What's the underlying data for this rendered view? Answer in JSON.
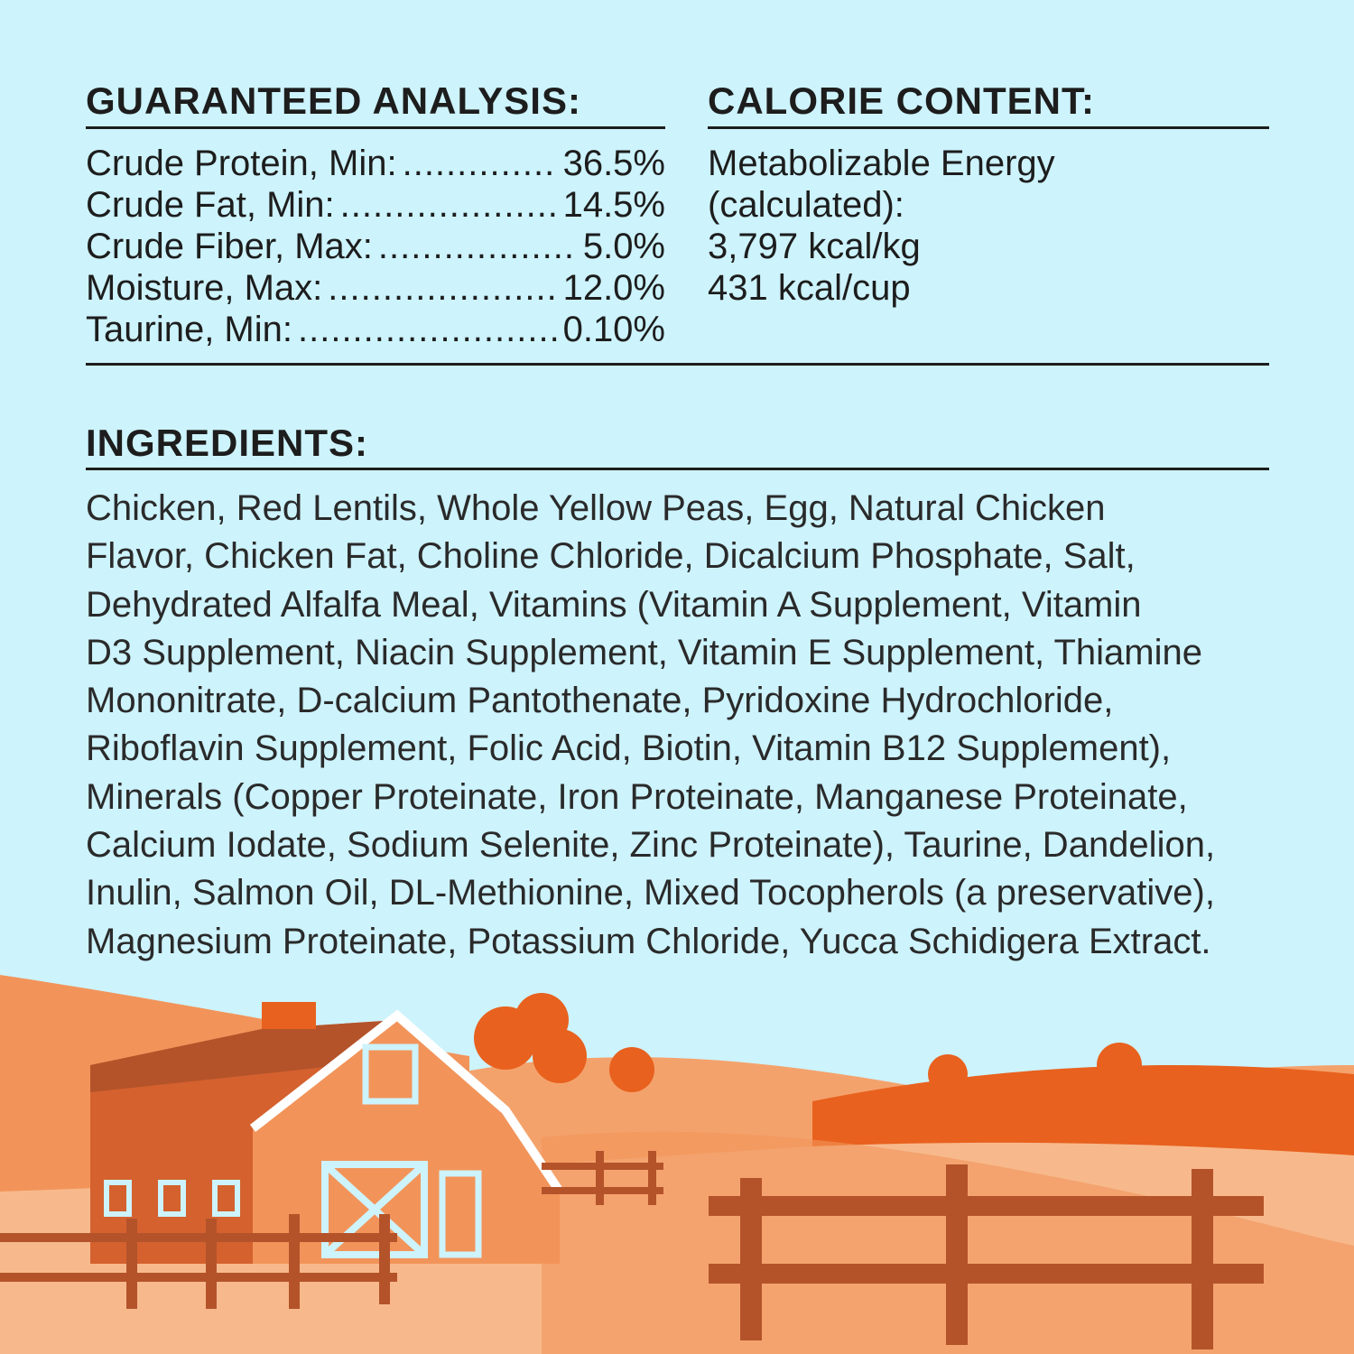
{
  "guaranteed_analysis": {
    "heading": "GUARANTEED ANALYSIS:",
    "rows": [
      {
        "label": "Crude Protein, Min:",
        "value": "36.5%"
      },
      {
        "label": "Crude Fat, Min:",
        "value": "14.5%"
      },
      {
        "label": "Crude Fiber, Max:",
        "value": "5.0%"
      },
      {
        "label": "Moisture, Max:",
        "value": "12.0%"
      },
      {
        "label": "Taurine, Min:",
        "value": "0.10%"
      }
    ]
  },
  "calorie_content": {
    "heading": "CALORIE CONTENT:",
    "lines": [
      "Metabolizable Energy",
      "(calculated):",
      "3,797 kcal/kg",
      "431 kcal/cup"
    ]
  },
  "ingredients": {
    "heading": "INGREDIENTS:",
    "lines": [
      "Chicken, Red Lentils, Whole Yellow Peas, Egg, Natural Chicken",
      "Flavor, Chicken Fat, Choline Chloride, Dicalcium Phosphate, Salt,",
      "Dehydrated Alfalfa Meal, Vitamins (Vitamin A Supplement, Vitamin",
      "D3 Supplement, Niacin Supplement, Vitamin E Supplement, Thiamine",
      "Mononitrate, D-calcium Pantothenate, Pyridoxine Hydrochloride,",
      "Riboflavin Supplement, Folic Acid, Biotin, Vitamin B12 Supplement),",
      "Minerals (Copper Proteinate, Iron Proteinate, Manganese Proteinate,",
      "Calcium Iodate, Sodium Selenite, Zinc Proteinate), Taurine, Dandelion,",
      "Inulin, Salmon Oil, DL-Methionine, Mixed Tocopherols (a preservative),",
      "Magnesium Proteinate, Potassium Chloride, Yucca Schidigera Extract."
    ]
  },
  "colors": {
    "background": "#cdf3fc",
    "text": "#1d1d1d",
    "orange_dark": "#e8611e",
    "orange_mid": "#f2945a",
    "orange_light": "#f7b98c",
    "fence": "#b4532a"
  }
}
